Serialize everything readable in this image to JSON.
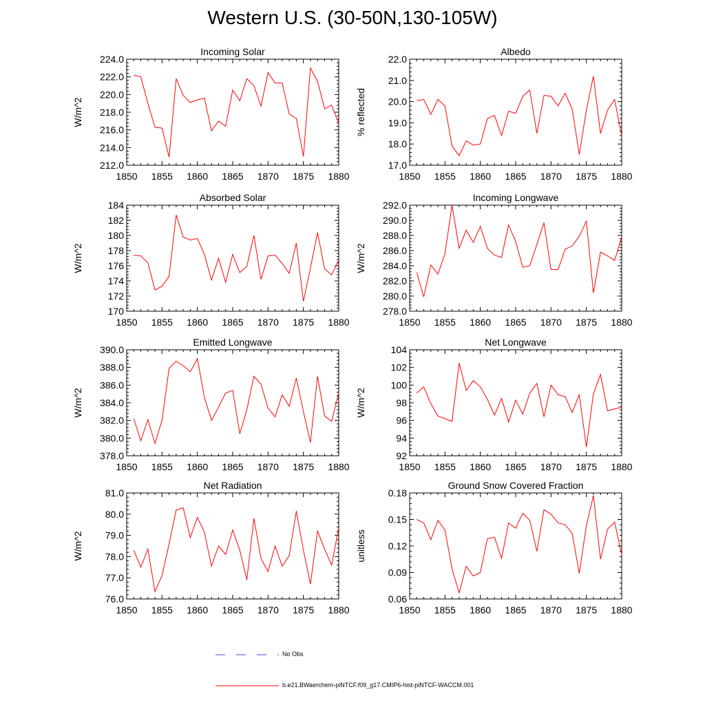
{
  "title": "Western U.S. (30-50N,130-105W)",
  "colors": {
    "model": "#ff0000",
    "obs": "#3a4ec2",
    "axis": "#000000"
  },
  "legend": {
    "obs_label": "No Obs",
    "model_label": "b.e21.BWaerchem-piNTCF.f09_g17.CMIP6-hist-piNTCF-WACCM.001"
  },
  "chart_data": [
    {
      "type": "line",
      "title": "Incoming Solar",
      "ylabel": "W/m^2",
      "xlim": [
        1850,
        1880
      ],
      "ylim": [
        212.0,
        224.0
      ],
      "x_ticks": [
        1850,
        1855,
        1860,
        1865,
        1870,
        1875,
        1880
      ],
      "y_ticks": [
        "212.0",
        "214.0",
        "216.0",
        "218.0",
        "220.0",
        "222.0",
        "224.0"
      ],
      "x": [
        1851,
        1852,
        1853,
        1854,
        1855,
        1856,
        1857,
        1858,
        1859,
        1860,
        1861,
        1862,
        1863,
        1864,
        1865,
        1866,
        1867,
        1868,
        1869,
        1870,
        1871,
        1872,
        1873,
        1874,
        1875,
        1876,
        1877,
        1878,
        1879,
        1880
      ],
      "series": [
        {
          "values": [
            222.2,
            222.0,
            219.0,
            216.3,
            216.2,
            212.9,
            221.8,
            219.9,
            219.1,
            219.4,
            219.6,
            215.9,
            217.0,
            216.4,
            220.5,
            219.3,
            221.8,
            221.0,
            218.7,
            222.5,
            221.3,
            221.3,
            217.8,
            217.3,
            213.0,
            223.0,
            221.5,
            218.4,
            218.8,
            216.7
          ]
        }
      ]
    },
    {
      "type": "line",
      "title": "Albedo",
      "ylabel": "% reflected",
      "xlim": [
        1850,
        1880
      ],
      "ylim": [
        17.0,
        22.0
      ],
      "x_ticks": [
        1850,
        1855,
        1860,
        1865,
        1870,
        1875,
        1880
      ],
      "y_ticks": [
        "17.0",
        "18.0",
        "19.0",
        "20.0",
        "21.0",
        "22.0"
      ],
      "x": [
        1851,
        1852,
        1853,
        1854,
        1855,
        1856,
        1857,
        1858,
        1859,
        1860,
        1861,
        1862,
        1863,
        1864,
        1865,
        1866,
        1867,
        1868,
        1869,
        1870,
        1871,
        1872,
        1873,
        1874,
        1875,
        1876,
        1877,
        1878,
        1879,
        1880
      ],
      "series": [
        {
          "values": [
            20.05,
            20.1,
            19.4,
            20.1,
            19.8,
            17.9,
            17.45,
            18.15,
            17.95,
            18.0,
            19.2,
            19.35,
            18.4,
            19.55,
            19.45,
            20.25,
            20.55,
            18.5,
            20.3,
            20.25,
            19.8,
            20.4,
            19.65,
            17.5,
            19.6,
            21.2,
            18.5,
            19.6,
            20.1,
            18.4
          ]
        }
      ]
    },
    {
      "type": "line",
      "title": "Absorbed Solar",
      "ylabel": "W/m^2",
      "xlim": [
        1850,
        1880
      ],
      "ylim": [
        170,
        184
      ],
      "x_ticks": [
        1850,
        1855,
        1860,
        1865,
        1870,
        1875,
        1880
      ],
      "y_ticks": [
        "170",
        "172",
        "174",
        "176",
        "178",
        "180",
        "182",
        "184"
      ],
      "x": [
        1851,
        1852,
        1853,
        1854,
        1855,
        1856,
        1857,
        1858,
        1859,
        1860,
        1861,
        1862,
        1863,
        1864,
        1865,
        1866,
        1867,
        1868,
        1869,
        1870,
        1871,
        1872,
        1873,
        1874,
        1875,
        1876,
        1877,
        1878,
        1879,
        1880
      ],
      "series": [
        {
          "values": [
            177.4,
            177.3,
            176.4,
            172.8,
            173.3,
            174.6,
            182.7,
            179.8,
            179.4,
            179.6,
            177.5,
            174.1,
            177.0,
            173.8,
            177.5,
            175.1,
            175.9,
            180.0,
            174.2,
            177.3,
            177.4,
            176.3,
            175.0,
            179.0,
            171.3,
            175.7,
            180.4,
            175.6,
            174.8,
            176.7
          ]
        }
      ]
    },
    {
      "type": "line",
      "title": "Incoming Longwave",
      "ylabel": "W/m^2",
      "xlim": [
        1850,
        1880
      ],
      "ylim": [
        278.0,
        292.0
      ],
      "x_ticks": [
        1850,
        1855,
        1860,
        1865,
        1870,
        1875,
        1880
      ],
      "y_ticks": [
        "278.0",
        "280.0",
        "282.0",
        "284.0",
        "286.0",
        "288.0",
        "290.0",
        "292.0"
      ],
      "x": [
        1851,
        1852,
        1853,
        1854,
        1855,
        1856,
        1857,
        1858,
        1859,
        1860,
        1861,
        1862,
        1863,
        1864,
        1865,
        1866,
        1867,
        1868,
        1869,
        1870,
        1871,
        1872,
        1873,
        1874,
        1875,
        1876,
        1877,
        1878,
        1879,
        1880
      ],
      "series": [
        {
          "values": [
            283.1,
            279.9,
            284.1,
            282.9,
            285.6,
            292.0,
            286.3,
            288.7,
            287.1,
            289.2,
            286.3,
            285.4,
            285.1,
            289.4,
            287.2,
            283.8,
            284.0,
            286.8,
            289.7,
            283.5,
            283.5,
            286.2,
            286.6,
            287.9,
            289.9,
            280.4,
            285.8,
            285.3,
            284.7,
            287.8
          ]
        }
      ]
    },
    {
      "type": "line",
      "title": "Emitted Longwave",
      "ylabel": "W/m^2",
      "xlim": [
        1850,
        1880
      ],
      "ylim": [
        378.0,
        390.0
      ],
      "x_ticks": [
        1850,
        1855,
        1860,
        1865,
        1870,
        1875,
        1880
      ],
      "y_ticks": [
        "378.0",
        "380.0",
        "382.0",
        "384.0",
        "386.0",
        "388.0",
        "390.0"
      ],
      "x": [
        1851,
        1852,
        1853,
        1854,
        1855,
        1856,
        1857,
        1858,
        1859,
        1860,
        1861,
        1862,
        1863,
        1864,
        1865,
        1866,
        1867,
        1868,
        1869,
        1870,
        1871,
        1872,
        1873,
        1874,
        1875,
        1876,
        1877,
        1878,
        1879,
        1880
      ],
      "series": [
        {
          "values": [
            382.2,
            379.7,
            382.1,
            379.4,
            382.0,
            387.9,
            388.7,
            388.2,
            387.5,
            389.0,
            384.6,
            382.0,
            383.5,
            385.1,
            385.4,
            380.5,
            383.2,
            387.0,
            386.1,
            383.4,
            382.4,
            384.9,
            383.6,
            386.8,
            383.0,
            379.5,
            387.0,
            382.5,
            381.9,
            385.1
          ]
        }
      ]
    },
    {
      "type": "line",
      "title": "Net Longwave",
      "ylabel": "W/m^2",
      "xlim": [
        1850,
        1880
      ],
      "ylim": [
        92,
        104
      ],
      "x_ticks": [
        1850,
        1855,
        1860,
        1865,
        1870,
        1875,
        1880
      ],
      "y_ticks": [
        "92",
        "94",
        "96",
        "98",
        "100",
        "102",
        "104"
      ],
      "x": [
        1851,
        1852,
        1853,
        1854,
        1855,
        1856,
        1857,
        1858,
        1859,
        1860,
        1861,
        1862,
        1863,
        1864,
        1865,
        1866,
        1867,
        1868,
        1869,
        1870,
        1871,
        1872,
        1873,
        1874,
        1875,
        1876,
        1877,
        1878,
        1879,
        1880
      ],
      "series": [
        {
          "values": [
            99.1,
            99.8,
            97.9,
            96.5,
            96.2,
            95.9,
            102.5,
            99.4,
            100.5,
            99.8,
            98.4,
            96.6,
            98.5,
            95.8,
            98.3,
            96.7,
            99.1,
            100.2,
            96.4,
            100.0,
            98.9,
            98.7,
            96.9,
            98.9,
            93.0,
            99.0,
            101.2,
            97.1,
            97.3,
            97.5
          ]
        }
      ]
    },
    {
      "type": "line",
      "title": "Net Radiation",
      "ylabel": "W/m^2",
      "xlim": [
        1850,
        1880
      ],
      "ylim": [
        76.0,
        81.0
      ],
      "x_ticks": [
        1850,
        1855,
        1860,
        1865,
        1870,
        1875,
        1880
      ],
      "y_ticks": [
        "76.0",
        "77.0",
        "78.0",
        "79.0",
        "80.0",
        "81.0"
      ],
      "x": [
        1851,
        1852,
        1853,
        1854,
        1855,
        1856,
        1857,
        1858,
        1859,
        1860,
        1861,
        1862,
        1863,
        1864,
        1865,
        1866,
        1867,
        1868,
        1869,
        1870,
        1871,
        1872,
        1873,
        1874,
        1875,
        1876,
        1877,
        1878,
        1879,
        1880
      ],
      "series": [
        {
          "values": [
            78.3,
            77.5,
            78.35,
            76.35,
            77.1,
            78.6,
            80.2,
            80.3,
            78.9,
            79.85,
            79.15,
            77.55,
            78.5,
            78.1,
            79.25,
            78.3,
            76.9,
            79.8,
            77.9,
            77.3,
            78.5,
            77.55,
            78.05,
            80.15,
            78.3,
            76.7,
            79.2,
            78.35,
            77.6,
            79.35
          ]
        }
      ]
    },
    {
      "type": "line",
      "title": "Ground Snow Covered Fraction",
      "ylabel": "unitless",
      "xlim": [
        1850,
        1880
      ],
      "ylim": [
        0.06,
        0.18
      ],
      "x_ticks": [
        1850,
        1855,
        1860,
        1865,
        1870,
        1875,
        1880
      ],
      "y_ticks": [
        "0.06",
        "0.09",
        "0.12",
        "0.15",
        "0.18"
      ],
      "x": [
        1851,
        1852,
        1853,
        1854,
        1855,
        1856,
        1857,
        1858,
        1859,
        1860,
        1861,
        1862,
        1863,
        1864,
        1865,
        1866,
        1867,
        1868,
        1869,
        1870,
        1871,
        1872,
        1873,
        1874,
        1875,
        1876,
        1877,
        1878,
        1879,
        1880
      ],
      "series": [
        {
          "values": [
            0.15,
            0.146,
            0.127,
            0.149,
            0.138,
            0.094,
            0.067,
            0.097,
            0.086,
            0.09,
            0.128,
            0.13,
            0.106,
            0.146,
            0.14,
            0.157,
            0.149,
            0.114,
            0.161,
            0.156,
            0.146,
            0.144,
            0.134,
            0.089,
            0.143,
            0.177,
            0.105,
            0.139,
            0.147,
            0.11
          ]
        }
      ]
    }
  ]
}
